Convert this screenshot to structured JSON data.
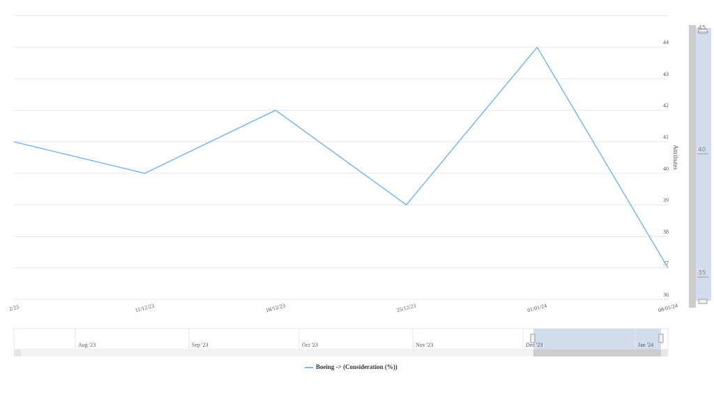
{
  "chart_data": {
    "type": "line",
    "y_axis_title": "Attributes",
    "categories": [
      "2/23",
      "11/12/23",
      "18/12/23",
      "25/12/23",
      "01/01/24",
      "08/01/24"
    ],
    "series": [
      {
        "name": "Boeing -> (Consideration (%))",
        "color": "#7cb5ec",
        "values": [
          41,
          40,
          42,
          39,
          44,
          37
        ]
      }
    ],
    "ylim": [
      36,
      45
    ],
    "yticks": [
      36,
      37,
      38,
      39,
      40,
      41,
      42,
      43,
      44
    ],
    "grid": true
  },
  "navigator": {
    "months": [
      "Aug '23",
      "Sep '23",
      "Oct '23",
      "Nov '23",
      "Dec '23",
      "Jan '24"
    ]
  },
  "y_navigator": {
    "ticks": [
      45,
      40,
      35
    ]
  }
}
